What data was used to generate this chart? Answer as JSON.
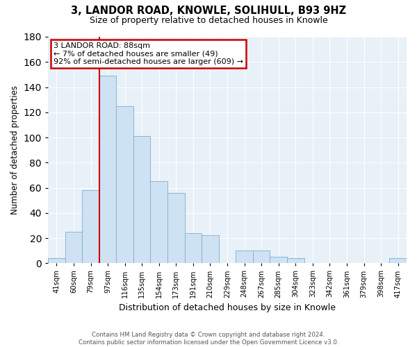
{
  "title": "3, LANDOR ROAD, KNOWLE, SOLIHULL, B93 9HZ",
  "subtitle": "Size of property relative to detached houses in Knowle",
  "xlabel": "Distribution of detached houses by size in Knowle",
  "ylabel": "Number of detached properties",
  "bar_color": "#cfe2f3",
  "bar_edge_color": "#7aadce",
  "categories": [
    "41sqm",
    "60sqm",
    "79sqm",
    "97sqm",
    "116sqm",
    "135sqm",
    "154sqm",
    "173sqm",
    "191sqm",
    "210sqm",
    "229sqm",
    "248sqm",
    "267sqm",
    "285sqm",
    "304sqm",
    "323sqm",
    "342sqm",
    "361sqm",
    "379sqm",
    "398sqm",
    "417sqm"
  ],
  "values": [
    4,
    25,
    58,
    149,
    125,
    101,
    65,
    56,
    24,
    22,
    0,
    10,
    10,
    5,
    4,
    0,
    0,
    0,
    0,
    0,
    4
  ],
  "ylim": [
    0,
    180
  ],
  "yticks": [
    0,
    20,
    40,
    60,
    80,
    100,
    120,
    140,
    160,
    180
  ],
  "annotation_line1": "3 LANDOR ROAD: 88sqm",
  "annotation_line2": "← 7% of detached houses are smaller (49)",
  "annotation_line3": "92% of semi-detached houses are larger (609) →",
  "annotation_box_color": "#ffffff",
  "annotation_box_edge_color": "#cc0000",
  "vline_color": "#cc0000",
  "footer_line1": "Contains HM Land Registry data © Crown copyright and database right 2024.",
  "footer_line2": "Contains public sector information licensed under the Open Government Licence v3.0.",
  "background_color": "#ffffff",
  "plot_bg_color": "#e8f0f8",
  "grid_color": "#ffffff"
}
